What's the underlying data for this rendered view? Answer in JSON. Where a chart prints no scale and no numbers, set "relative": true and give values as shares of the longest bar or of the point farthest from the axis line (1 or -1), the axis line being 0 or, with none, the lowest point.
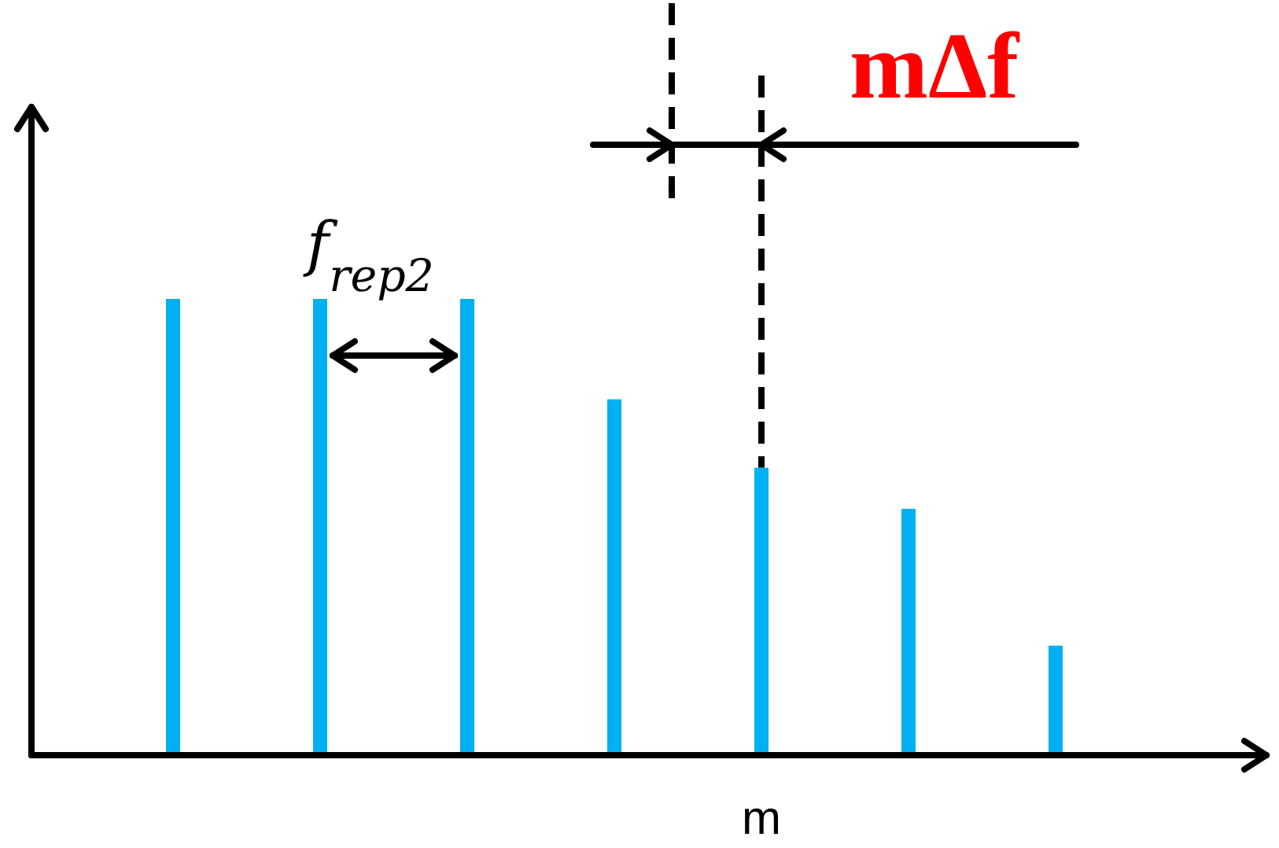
{
  "chart_data": {
    "type": "bar",
    "relative": true,
    "categories": [
      null,
      null,
      null,
      null,
      "m",
      null,
      null
    ],
    "values": [
      1,
      1,
      1,
      0.78,
      0.63,
      0.54,
      0.24
    ],
    "color": "#00b0f0",
    "annotations": [
      "f$_{rep2}$",
      "mΔf"
    ]
  }
}
